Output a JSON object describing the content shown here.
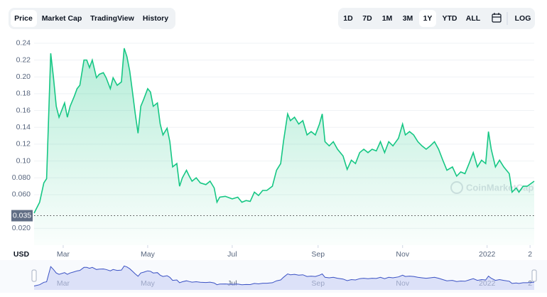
{
  "toolbar": {
    "tabs": [
      "Price",
      "Market Cap",
      "TradingView",
      "History"
    ],
    "ranges": [
      "1D",
      "7D",
      "1M",
      "3M",
      "1Y",
      "YTD",
      "ALL"
    ],
    "scale_toggle": "LOG"
  },
  "chart_data": {
    "type": "area",
    "color": "#16c784",
    "currency": "USD",
    "watermark": "CoinMarketCap",
    "x": [
      -21,
      -17,
      -14,
      -12,
      -9,
      -7,
      -5,
      -3,
      1,
      3,
      5,
      8,
      10,
      12,
      15,
      17,
      19,
      21,
      24,
      26,
      29,
      31,
      34,
      36,
      39,
      42,
      44,
      46,
      48,
      50,
      52,
      54,
      56,
      58,
      61,
      63,
      65,
      68,
      70,
      72,
      75,
      77,
      79,
      82,
      84,
      86,
      89,
      91,
      93,
      96,
      99,
      103,
      106,
      109,
      111,
      113,
      117,
      122,
      126,
      129,
      132,
      135,
      138,
      141,
      144,
      147,
      151,
      154,
      157,
      159,
      162,
      164,
      167,
      170,
      173,
      176,
      179,
      182,
      185,
      187,
      189,
      192,
      195,
      198,
      202,
      205,
      208,
      211,
      214,
      217,
      220,
      223,
      226,
      229,
      232,
      235,
      238,
      242,
      245,
      247,
      250,
      253,
      256,
      259,
      262,
      265,
      268,
      271,
      274,
      277,
      281,
      284,
      287,
      290,
      293,
      296,
      299,
      302,
      305,
      307,
      309,
      312,
      315,
      318,
      322,
      324,
      327,
      329,
      332,
      335,
      340
    ],
    "values": [
      0.038,
      0.051,
      0.074,
      0.079,
      0.228,
      0.199,
      0.165,
      0.152,
      0.169,
      0.152,
      0.165,
      0.177,
      0.186,
      0.19,
      0.22,
      0.22,
      0.211,
      0.22,
      0.199,
      0.203,
      0.205,
      0.199,
      0.186,
      0.199,
      0.19,
      0.194,
      0.234,
      0.224,
      0.207,
      0.182,
      0.156,
      0.133,
      0.165,
      0.173,
      0.186,
      0.182,
      0.165,
      0.169,
      0.144,
      0.131,
      0.139,
      0.123,
      0.093,
      0.097,
      0.07,
      0.08,
      0.089,
      0.082,
      0.076,
      0.08,
      0.074,
      0.072,
      0.076,
      0.068,
      0.051,
      0.057,
      0.058,
      0.055,
      0.057,
      0.051,
      0.053,
      0.052,
      0.063,
      0.059,
      0.065,
      0.065,
      0.07,
      0.089,
      0.097,
      0.123,
      0.156,
      0.148,
      0.152,
      0.144,
      0.148,
      0.131,
      0.135,
      0.131,
      0.144,
      0.156,
      0.123,
      0.118,
      0.123,
      0.114,
      0.106,
      0.09,
      0.101,
      0.097,
      0.11,
      0.114,
      0.11,
      0.114,
      0.112,
      0.123,
      0.11,
      0.123,
      0.118,
      0.127,
      0.144,
      0.131,
      0.135,
      0.131,
      0.123,
      0.118,
      0.114,
      0.118,
      0.123,
      0.114,
      0.101,
      0.089,
      0.093,
      0.082,
      0.087,
      0.085,
      0.097,
      0.11,
      0.093,
      0.101,
      0.097,
      0.135,
      0.114,
      0.093,
      0.101,
      0.093,
      0.085,
      0.063,
      0.068,
      0.063,
      0.07,
      0.07,
      0.076
    ],
    "xlim": [
      -21,
      340
    ],
    "ylim": [
      0,
      0.25
    ],
    "yticks": [
      {
        "value": 0.02,
        "label": "0.020"
      },
      {
        "value": 0.06,
        "label": "0.060"
      },
      {
        "value": 0.08,
        "label": "0.080"
      },
      {
        "value": 0.1,
        "label": "0.10"
      },
      0.12,
      0.14,
      0.16,
      0.18,
      {
        "value": 0.2,
        "label": "0.20"
      },
      0.22,
      0.24
    ],
    "xticks": [
      {
        "value": 0,
        "label": "Mar"
      },
      {
        "value": 61,
        "label": "May"
      },
      {
        "value": 122,
        "label": "Jul"
      },
      {
        "value": 184,
        "label": "Sep"
      },
      {
        "value": 245,
        "label": "Nov"
      },
      {
        "value": 306,
        "label": "2022"
      },
      {
        "value": 337,
        "label": "2"
      }
    ],
    "reference_line": 0.035,
    "grid": true,
    "navigator": true
  }
}
